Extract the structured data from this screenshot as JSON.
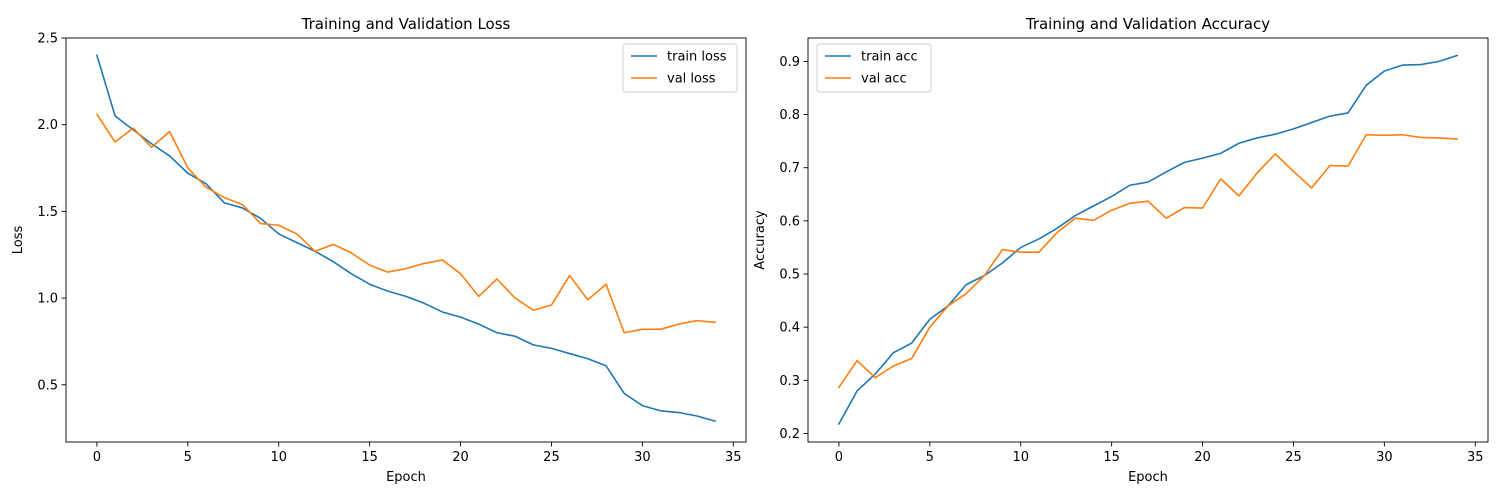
{
  "chart_data": [
    {
      "type": "line",
      "title": "Training and Validation Loss",
      "xlabel": "Epoch",
      "ylabel": "Loss",
      "xlim": [
        -1.7,
        35.7
      ],
      "ylim": [
        0.17,
        2.5
      ],
      "xticks": [
        0,
        5,
        10,
        15,
        20,
        25,
        30,
        35
      ],
      "xtick_labels": [
        "0",
        "5",
        "10",
        "15",
        "20",
        "25",
        "30",
        "35"
      ],
      "yticks": [
        0.5,
        1.0,
        1.5,
        2.0,
        2.5
      ],
      "ytick_labels": [
        "0.5",
        "1.0",
        "1.5",
        "2.0",
        "2.5"
      ],
      "legend": "upper right",
      "grid": false,
      "x": [
        0,
        1,
        2,
        3,
        4,
        5,
        6,
        7,
        8,
        9,
        10,
        11,
        12,
        13,
        14,
        15,
        16,
        17,
        18,
        19,
        20,
        21,
        22,
        23,
        24,
        25,
        26,
        27,
        28,
        29,
        30,
        31,
        32,
        33,
        34
      ],
      "series": [
        {
          "name": "train loss",
          "color": "#1f77b4",
          "values": [
            2.4,
            2.05,
            1.97,
            1.89,
            1.82,
            1.72,
            1.66,
            1.55,
            1.52,
            1.46,
            1.37,
            1.32,
            1.27,
            1.21,
            1.14,
            1.08,
            1.04,
            1.01,
            0.97,
            0.92,
            0.89,
            0.85,
            0.8,
            0.78,
            0.73,
            0.71,
            0.68,
            0.65,
            0.61,
            0.45,
            0.38,
            0.35,
            0.34,
            0.32,
            0.29
          ]
        },
        {
          "name": "val loss",
          "color": "#ff7f0e",
          "values": [
            2.06,
            1.9,
            1.98,
            1.87,
            1.96,
            1.75,
            1.64,
            1.58,
            1.54,
            1.43,
            1.42,
            1.37,
            1.27,
            1.31,
            1.26,
            1.19,
            1.15,
            1.17,
            1.2,
            1.22,
            1.14,
            1.01,
            1.11,
            1.0,
            0.93,
            0.96,
            1.13,
            0.99,
            1.08,
            0.8,
            0.82,
            0.82,
            0.85,
            0.87,
            0.86
          ]
        }
      ]
    },
    {
      "type": "line",
      "title": "Training and Validation Accuracy",
      "xlabel": "Epoch",
      "ylabel": "Accuracy",
      "xlim": [
        -1.7,
        35.7
      ],
      "ylim": [
        0.184,
        0.944
      ],
      "xticks": [
        0,
        5,
        10,
        15,
        20,
        25,
        30,
        35
      ],
      "xtick_labels": [
        "0",
        "5",
        "10",
        "15",
        "20",
        "25",
        "30",
        "35"
      ],
      "yticks": [
        0.2,
        0.3,
        0.4,
        0.5,
        0.6,
        0.7,
        0.8,
        0.9
      ],
      "ytick_labels": [
        "0.2",
        "0.3",
        "0.4",
        "0.5",
        "0.6",
        "0.7",
        "0.8",
        "0.9"
      ],
      "legend": "upper left",
      "grid": false,
      "x": [
        0,
        1,
        2,
        3,
        4,
        5,
        6,
        7,
        8,
        9,
        10,
        11,
        12,
        13,
        14,
        15,
        16,
        17,
        18,
        19,
        20,
        21,
        22,
        23,
        24,
        25,
        26,
        27,
        28,
        29,
        30,
        31,
        32,
        33,
        34
      ],
      "series": [
        {
          "name": "train acc",
          "color": "#1f77b4",
          "values": [
            0.218,
            0.28,
            0.312,
            0.352,
            0.37,
            0.415,
            0.44,
            0.48,
            0.497,
            0.521,
            0.55,
            0.566,
            0.586,
            0.61,
            0.628,
            0.646,
            0.667,
            0.673,
            0.692,
            0.71,
            0.718,
            0.727,
            0.746,
            0.756,
            0.763,
            0.773,
            0.785,
            0.797,
            0.803,
            0.855,
            0.882,
            0.893,
            0.894,
            0.9,
            0.911
          ]
        },
        {
          "name": "val acc",
          "color": "#ff7f0e",
          "values": [
            0.287,
            0.337,
            0.305,
            0.327,
            0.341,
            0.4,
            0.44,
            0.463,
            0.497,
            0.546,
            0.541,
            0.541,
            0.578,
            0.605,
            0.601,
            0.62,
            0.633,
            0.637,
            0.605,
            0.625,
            0.624,
            0.679,
            0.647,
            0.69,
            0.726,
            0.693,
            0.662,
            0.704,
            0.703,
            0.762,
            0.761,
            0.762,
            0.757,
            0.756,
            0.754
          ]
        }
      ]
    }
  ]
}
